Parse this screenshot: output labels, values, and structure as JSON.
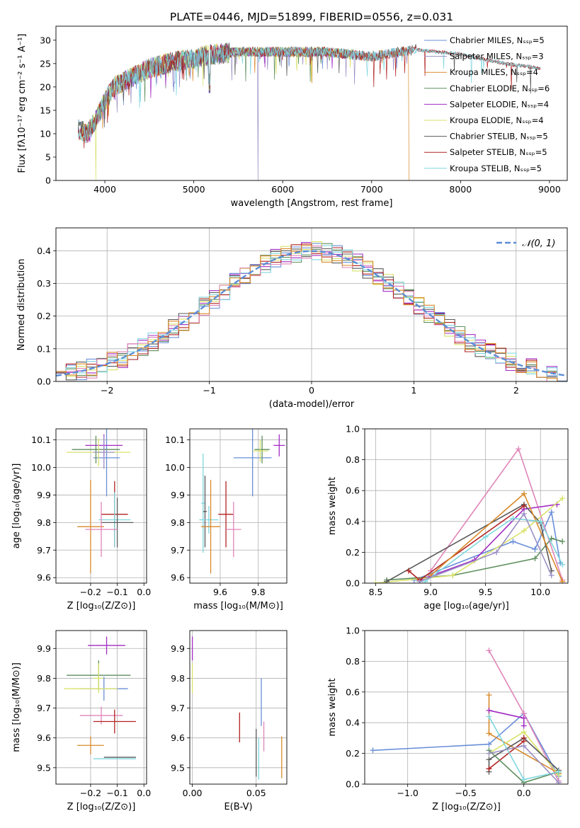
{
  "figure": {
    "title": "PLATE=0446, MJD=51899, FIBERID=0556, z=0.031"
  },
  "colors": [
    "#6a8fd8",
    "#9b8fc4",
    "#d98a2b",
    "#5f8f5f",
    "#a32bc4",
    "#d9e26a",
    "#5a5a5a",
    "#b22222",
    "#7fd6de",
    "#e085b8"
  ],
  "chart_data": [
    {
      "id": "spectrum",
      "type": "line",
      "title": "PLATE=0446, MJD=51899, FIBERID=0556, z=0.031",
      "xlabel": "wavelength [Angstrom, rest frame]",
      "ylabel": "Flux [fλ10⁻¹⁷ erg cm⁻² s⁻¹ A⁻¹]",
      "xlim": [
        3450,
        9200
      ],
      "ylim": [
        0,
        33
      ],
      "xticks": [
        4000,
        5000,
        6000,
        7000,
        8000,
        9000
      ],
      "yticks": [
        0,
        5,
        10,
        15,
        20,
        25,
        30
      ],
      "grid": false,
      "legend_position": "top-right",
      "continuum": {
        "x": [
          3700,
          3800,
          3900,
          4000,
          4100,
          4300,
          4500,
          4800,
          5000,
          5200,
          5500,
          6000,
          6500,
          7000,
          7500,
          8000,
          8500,
          8900
        ],
        "y": [
          11,
          10,
          13,
          17,
          20,
          22,
          24,
          25.5,
          26,
          27,
          27.5,
          27.5,
          27.5,
          26.5,
          28,
          27,
          25,
          24
        ]
      },
      "series": [
        {
          "name": "Chabrier MILES, Nₛₛₚ=5",
          "end": 7420,
          "drop_at": null
        },
        {
          "name": "Salpeter MILES, Nₛₛₚ=3",
          "end": 7420,
          "drop_at": 5720
        },
        {
          "name": "Kroupa MILES, Nₛₛₚ=4",
          "end": 7420,
          "drop_at": 7420
        },
        {
          "name": "Chabrier ELODIE, Nₛₛₚ=6",
          "end": 6800,
          "drop_at": 6800
        },
        {
          "name": "Salpeter ELODIE, Nₛₛₚ=4",
          "end": 6800,
          "drop_at": null
        },
        {
          "name": "Kroupa ELODIE, Nₛₛₚ=4",
          "end": 6800,
          "drop_at": 3900
        },
        {
          "name": "Chabrier STELIB, Nₛₛₚ=5",
          "end": 8900,
          "drop_at": null
        },
        {
          "name": "Salpeter STELIB, Nₛₛₚ=5",
          "end": 8900,
          "drop_at": null
        },
        {
          "name": "Kroupa STELIB, Nₛₛₚ=5",
          "end": 8900,
          "drop_at": null
        }
      ]
    },
    {
      "id": "residuals",
      "type": "area",
      "xlabel": "(data-model)/error",
      "ylabel": "Normed distribution",
      "xlim": [
        -2.5,
        2.5
      ],
      "ylim": [
        0,
        0.47
      ],
      "xticks": [
        -2,
        -1,
        0,
        1,
        2
      ],
      "xtick_labels": [
        "−2",
        "−1",
        "0",
        "1",
        "2"
      ],
      "yticks": [
        0,
        0.1,
        0.2,
        0.3,
        0.4
      ],
      "ytick_labels": [
        "0.0",
        "0.1",
        "0.2",
        "0.3",
        "0.4"
      ],
      "grid": true,
      "legend_position": "top-right",
      "bins": {
        "start": -2.5,
        "width": 0.1,
        "count": 50
      },
      "reference_curve": {
        "name": "𝒩(0, 1)",
        "style": "dashed",
        "color": "#5b8ed6"
      },
      "n_histograms": 9
    },
    {
      "id": "age-vs-Z",
      "type": "scatter",
      "xlabel": "Z [log₁₀(Z/Z⊙)]",
      "ylabel": "age  [log₁₀(age/yr)]",
      "xlim": [
        -0.33,
        0.01
      ],
      "ylim": [
        9.58,
        10.14
      ],
      "xticks": [
        -0.2,
        -0.1,
        0.0
      ],
      "xtick_labels": [
        "−0.2",
        "−0.1",
        "0.0"
      ],
      "yticks": [
        9.6,
        9.7,
        9.8,
        9.9,
        10.0,
        10.1
      ],
      "grid": true,
      "points": [
        {
          "c": 0,
          "x": -0.14,
          "y": 10.035,
          "xerr": 0.05,
          "yerr": 0.14
        },
        {
          "c": 3,
          "x": -0.18,
          "y": 10.065,
          "xerr": 0.09,
          "yerr": 0.05
        },
        {
          "c": 4,
          "x": -0.15,
          "y": 10.08,
          "xerr": 0.07,
          "yerr": 0.04
        },
        {
          "c": 5,
          "x": -0.17,
          "y": 10.055,
          "xerr": 0.12,
          "yerr": 0.05
        },
        {
          "c": 1,
          "x": -0.15,
          "y": 10.055,
          "xerr": 0.04,
          "yerr": 0.06
        },
        {
          "c": 7,
          "x": -0.11,
          "y": 9.83,
          "xerr": 0.05,
          "yerr": 0.12
        },
        {
          "c": 8,
          "x": -0.11,
          "y": 9.81,
          "xerr": 0.06,
          "yerr": 0.1
        },
        {
          "c": 6,
          "x": -0.1,
          "y": 9.8,
          "xerr": 0.06,
          "yerr": 0.09
        },
        {
          "c": 2,
          "x": -0.2,
          "y": 9.785,
          "xerr": 0.05,
          "yerr": 0.17
        },
        {
          "c": 9,
          "x": -0.16,
          "y": 9.775,
          "xerr": 0.06,
          "yerr": 0.1
        }
      ]
    },
    {
      "id": "age-vs-mass",
      "type": "scatter",
      "xlabel": "mass [log₁₀(M/M⊙)]",
      "ylabel": "",
      "xlim": [
        9.44,
        9.95
      ],
      "ylim": [
        9.58,
        10.14
      ],
      "xticks": [
        9.6,
        9.8
      ],
      "yticks": [
        9.6,
        9.7,
        9.8,
        9.9,
        10.0,
        10.1
      ],
      "grid": true,
      "points": [
        {
          "c": 0,
          "x": 9.77,
          "y": 10.035,
          "xerr": 0.1,
          "yerr": 0.14
        },
        {
          "c": 3,
          "x": 9.82,
          "y": 10.065,
          "xerr": 0.04,
          "yerr": 0.05
        },
        {
          "c": 4,
          "x": 9.91,
          "y": 10.08,
          "xerr": 0.03,
          "yerr": 0.04
        },
        {
          "c": 5,
          "x": 9.81,
          "y": 10.06,
          "xerr": 0.04,
          "yerr": 0.04
        },
        {
          "c": 8,
          "x": 9.51,
          "y": 9.87,
          "xerr": 0.01,
          "yerr": 0.18
        },
        {
          "c": 6,
          "x": 9.52,
          "y": 9.84,
          "xerr": 0.01,
          "yerr": 0.13
        },
        {
          "c": 7,
          "x": 9.63,
          "y": 9.83,
          "xerr": 0.04,
          "yerr": 0.12
        },
        {
          "c": 8,
          "x": 9.54,
          "y": 9.81,
          "xerr": 0.05,
          "yerr": 0.05
        },
        {
          "c": 2,
          "x": 9.55,
          "y": 9.785,
          "xerr": 0.05,
          "yerr": 0.17
        },
        {
          "c": 9,
          "x": 9.67,
          "y": 9.775,
          "xerr": 0.04,
          "yerr": 0.1
        }
      ]
    },
    {
      "id": "weight-vs-age",
      "type": "line",
      "xlabel": "age  [log₁₀(age/yr)]",
      "ylabel": "mass weight",
      "xlim": [
        8.4,
        10.25
      ],
      "ylim": [
        0,
        1.0
      ],
      "xticks": [
        8.5,
        9.0,
        9.5,
        10.0
      ],
      "yticks": [
        0,
        0.2,
        0.4,
        0.6,
        0.8,
        1.0
      ],
      "ytick_labels": [
        "0.0",
        "0.2",
        "0.4",
        "0.6",
        "0.8",
        "1.0"
      ],
      "grid": true,
      "series": [
        {
          "c": 0,
          "x": [
            8.85,
            9.75,
            9.95,
            10.1,
            10.18
          ],
          "y": [
            0.02,
            0.27,
            0.22,
            0.46,
            0.13
          ]
        },
        {
          "c": 9,
          "x": [
            9.0,
            9.8,
            10.2
          ],
          "y": [
            0.08,
            0.87,
            0.02
          ]
        },
        {
          "c": 3,
          "x": [
            8.6,
            9.2,
            9.95,
            10.1,
            10.2
          ],
          "y": [
            0.02,
            0.05,
            0.16,
            0.29,
            0.27
          ]
        },
        {
          "c": 4,
          "x": [
            8.9,
            9.4,
            9.85,
            10.15
          ],
          "y": [
            0.02,
            0.15,
            0.48,
            0.51
          ]
        },
        {
          "c": 5,
          "x": [
            8.5,
            9.2,
            9.85,
            10.2
          ],
          "y": [
            0.0,
            0.05,
            0.34,
            0.55
          ]
        },
        {
          "c": 6,
          "x": [
            8.6,
            9.85,
            10.0,
            10.1
          ],
          "y": [
            0.01,
            0.51,
            0.39,
            0.08
          ]
        },
        {
          "c": 7,
          "x": [
            8.8,
            8.9,
            9.85
          ],
          "y": [
            0.08,
            0.02,
            0.5
          ]
        },
        {
          "c": 2,
          "x": [
            9.0,
            9.85,
            10.2
          ],
          "y": [
            0.05,
            0.58,
            0.01
          ]
        },
        {
          "c": 8,
          "x": [
            8.95,
            9.5,
            9.75,
            10.0,
            10.2
          ],
          "y": [
            0.01,
            0.3,
            0.42,
            0.4,
            0.12
          ]
        },
        {
          "c": 1,
          "x": [
            8.9,
            9.6,
            9.85,
            10.1
          ],
          "y": [
            0.01,
            0.2,
            0.45,
            0.05
          ]
        }
      ]
    },
    {
      "id": "mass-vs-Z",
      "type": "scatter",
      "xlabel": "Z [log₁₀(Z/Z⊙)]",
      "ylabel": "mass [log₁₀(M/M⊙)]",
      "xlim": [
        -0.33,
        0.01
      ],
      "ylim": [
        9.445,
        9.96
      ],
      "xticks": [
        -0.2,
        -0.1,
        0.0
      ],
      "xtick_labels": [
        "−0.2",
        "−0.1",
        "0.0"
      ],
      "yticks": [
        9.5,
        9.6,
        9.7,
        9.8,
        9.9
      ],
      "grid": true,
      "points": [
        {
          "c": 4,
          "x": -0.14,
          "y": 9.91,
          "xerr": 0.07,
          "yerr": 0.03
        },
        {
          "c": 3,
          "x": -0.17,
          "y": 9.81,
          "xerr": 0.12,
          "yerr": 0.05
        },
        {
          "c": 5,
          "x": -0.17,
          "y": 9.8,
          "xerr": 0.02,
          "yerr": 0.05
        },
        {
          "c": 0,
          "x": -0.15,
          "y": 9.765,
          "xerr": 0.09,
          "yerr": 0.04
        },
        {
          "c": 5,
          "x": -0.2,
          "y": 9.765,
          "xerr": 0.1,
          "yerr": 0.0
        },
        {
          "c": 9,
          "x": -0.16,
          "y": 9.675,
          "xerr": 0.08,
          "yerr": 0.03
        },
        {
          "c": 7,
          "x": -0.11,
          "y": 9.655,
          "xerr": 0.08,
          "yerr": 0.04
        },
        {
          "c": 2,
          "x": -0.2,
          "y": 9.575,
          "xerr": 0.05,
          "yerr": 0.03
        },
        {
          "c": 8,
          "x": -0.11,
          "y": 9.53,
          "xerr": 0.08,
          "yerr": 0.0
        },
        {
          "c": 6,
          "x": -0.09,
          "y": 9.535,
          "xerr": 0.06,
          "yerr": 0.0
        }
      ]
    },
    {
      "id": "mass-vs-EBV",
      "type": "scatter",
      "xlabel": "E(B-V)",
      "ylabel": "",
      "xlim": [
        -0.002,
        0.074
      ],
      "ylim": [
        9.445,
        9.96
      ],
      "xticks": [
        0.0,
        0.05
      ],
      "xtick_labels": [
        "0.00",
        "0.05"
      ],
      "yticks": [
        9.5,
        9.6,
        9.7,
        9.8,
        9.9
      ],
      "grid": true,
      "points": [
        {
          "c": 4,
          "x": 0.0,
          "y": 9.9,
          "xerr": 0,
          "yerr": 0.04
        },
        {
          "c": 5,
          "x": 0.0,
          "y": 9.8,
          "xerr": 0,
          "yerr": 0.05
        },
        {
          "c": 0,
          "x": 0.054,
          "y": 9.72,
          "xerr": 0,
          "yerr": 0.08
        },
        {
          "c": 7,
          "x": 0.037,
          "y": 9.635,
          "xerr": 0,
          "yerr": 0.05
        },
        {
          "c": 9,
          "x": 0.056,
          "y": 9.605,
          "xerr": 0,
          "yerr": 0.05
        },
        {
          "c": 8,
          "x": 0.052,
          "y": 9.53,
          "xerr": 0,
          "yerr": 0.07
        },
        {
          "c": 6,
          "x": 0.05,
          "y": 9.55,
          "xerr": 0,
          "yerr": 0.08
        },
        {
          "c": 2,
          "x": 0.07,
          "y": 9.535,
          "xerr": 0,
          "yerr": 0.07
        }
      ]
    },
    {
      "id": "weight-vs-Z",
      "type": "line",
      "xlabel": "Z [log₁₀(Z/Z⊙)]",
      "ylabel": "mass weight",
      "xlim": [
        -1.37,
        0.38
      ],
      "ylim": [
        0,
        1.0
      ],
      "xticks": [
        -1.0,
        -0.5,
        0.0
      ],
      "xtick_labels": [
        "−1.0",
        "−0.5",
        "0.0"
      ],
      "yticks": [
        0,
        0.2,
        0.4,
        0.6,
        0.8,
        1.0
      ],
      "ytick_labels": [
        "0.0",
        "0.2",
        "0.4",
        "0.6",
        "0.8",
        "1.0"
      ],
      "grid": true,
      "series": [
        {
          "c": 0,
          "x": [
            -1.3,
            -0.3,
            0.0,
            0.3
          ],
          "y": [
            0.22,
            0.26,
            0.46,
            0.05
          ]
        },
        {
          "c": 9,
          "x": [
            -0.3,
            0.0,
            0.3
          ],
          "y": [
            0.87,
            0.46,
            0.02
          ]
        },
        {
          "c": 2,
          "x": [
            -0.3,
            -0.3,
            0.3
          ],
          "y": [
            0.58,
            0.33,
            0.07
          ]
        },
        {
          "c": 4,
          "x": [
            -0.3,
            0.0,
            0.0
          ],
          "y": [
            0.48,
            0.43,
            0.38
          ]
        },
        {
          "c": 5,
          "x": [
            -0.3,
            0.0,
            0.3
          ],
          "y": [
            0.2,
            0.34,
            0.06
          ]
        },
        {
          "c": 6,
          "x": [
            -0.3,
            -0.3,
            0.0,
            0.3
          ],
          "y": [
            0.08,
            0.16,
            0.3,
            0.09
          ]
        },
        {
          "c": 7,
          "x": [
            -0.3,
            0.0,
            0.0
          ],
          "y": [
            0.1,
            0.28,
            0.3
          ]
        },
        {
          "c": 3,
          "x": [
            -0.3,
            0.0,
            0.3
          ],
          "y": [
            0.22,
            0.01,
            0.08
          ]
        },
        {
          "c": 8,
          "x": [
            -0.3,
            0.0,
            0.3
          ],
          "y": [
            0.44,
            0.03,
            0.08
          ]
        },
        {
          "c": 1,
          "x": [
            -0.3,
            0.0,
            0.3
          ],
          "y": [
            0.2,
            0.25,
            0.01
          ]
        }
      ]
    }
  ]
}
